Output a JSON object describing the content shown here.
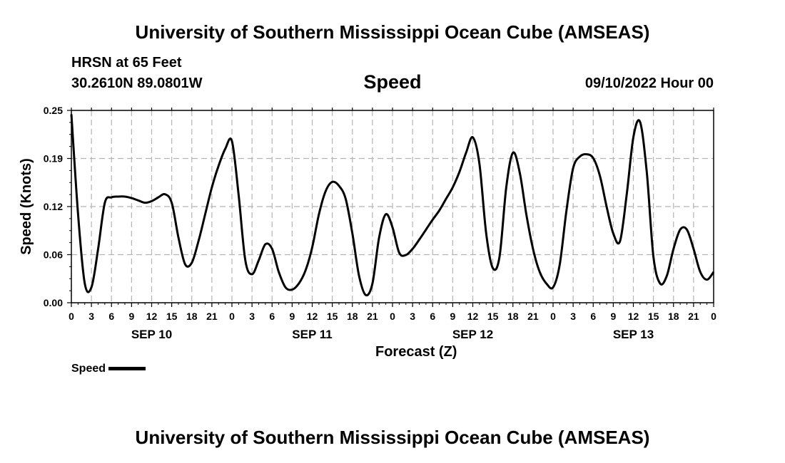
{
  "header": {
    "title": "University of Southern Mississippi Ocean Cube (AMSEAS)",
    "station": "HRSN at 65 Feet",
    "coords": "30.2610N  89.0801W",
    "datetime": "09/10/2022 Hour 00"
  },
  "footer": {
    "title": "University of Southern Mississippi Ocean Cube (AMSEAS)"
  },
  "chart_data": {
    "type": "line",
    "title": "Speed",
    "xlabel": "Forecast (Z)",
    "ylabel": "Speed (Knots)",
    "ylim": [
      0,
      0.25
    ],
    "xlim": [
      0,
      96
    ],
    "yticks": [
      "0.00",
      "0.06",
      "0.12",
      "0.19",
      "0.25"
    ],
    "xtick_labels": [
      "0",
      "3",
      "6",
      "9",
      "12",
      "15",
      "18",
      "21",
      "0",
      "3",
      "6",
      "9",
      "12",
      "15",
      "18",
      "21",
      "0",
      "3",
      "6",
      "9",
      "12",
      "15",
      "18",
      "21",
      "0",
      "3",
      "6",
      "9",
      "12",
      "15",
      "18",
      "21",
      "0"
    ],
    "day_labels": [
      {
        "label": "SEP 10",
        "hour": 12
      },
      {
        "label": "SEP 11",
        "hour": 36
      },
      {
        "label": "SEP 12",
        "hour": 60
      },
      {
        "label": "SEP 13",
        "hour": 84
      }
    ],
    "grid": true,
    "legend": "bottom-left",
    "series": [
      {
        "name": "Speed",
        "color": "#000000",
        "x": [
          0,
          1,
          2,
          3,
          4,
          5,
          6,
          7,
          8,
          9,
          10,
          11,
          12,
          13,
          14,
          15,
          16,
          17,
          18,
          19,
          20,
          21,
          22,
          23,
          24,
          25,
          26,
          27,
          28,
          29,
          30,
          31,
          32,
          33,
          34,
          35,
          36,
          37,
          38,
          39,
          40,
          41,
          42,
          43,
          44,
          45,
          46,
          47,
          48,
          49,
          50,
          51,
          52,
          53,
          54,
          55,
          56,
          57,
          58,
          59,
          60,
          61,
          62,
          63,
          64,
          65,
          66,
          67,
          68,
          69,
          70,
          71,
          72,
          73,
          74,
          75,
          76,
          77,
          78,
          79,
          80,
          81,
          82,
          83,
          84,
          85,
          86,
          87,
          88,
          89,
          90,
          91,
          92,
          93,
          94,
          95,
          96
        ],
        "values": [
          0.245,
          0.115,
          0.025,
          0.02,
          0.07,
          0.13,
          0.137,
          0.138,
          0.138,
          0.136,
          0.133,
          0.13,
          0.132,
          0.137,
          0.141,
          0.13,
          0.085,
          0.05,
          0.052,
          0.08,
          0.115,
          0.15,
          0.178,
          0.2,
          0.21,
          0.14,
          0.055,
          0.037,
          0.055,
          0.076,
          0.07,
          0.04,
          0.02,
          0.017,
          0.025,
          0.042,
          0.072,
          0.115,
          0.145,
          0.157,
          0.152,
          0.135,
          0.09,
          0.035,
          0.01,
          0.025,
          0.085,
          0.115,
          0.098,
          0.065,
          0.062,
          0.07,
          0.082,
          0.095,
          0.108,
          0.12,
          0.135,
          0.15,
          0.17,
          0.195,
          0.215,
          0.18,
          0.09,
          0.045,
          0.06,
          0.15,
          0.195,
          0.17,
          0.115,
          0.07,
          0.04,
          0.025,
          0.02,
          0.05,
          0.12,
          0.175,
          0.19,
          0.193,
          0.188,
          0.165,
          0.125,
          0.09,
          0.08,
          0.14,
          0.215,
          0.235,
          0.17,
          0.06,
          0.025,
          0.035,
          0.07,
          0.095,
          0.095,
          0.07,
          0.04,
          0.03,
          0.04
        ]
      }
    ]
  }
}
